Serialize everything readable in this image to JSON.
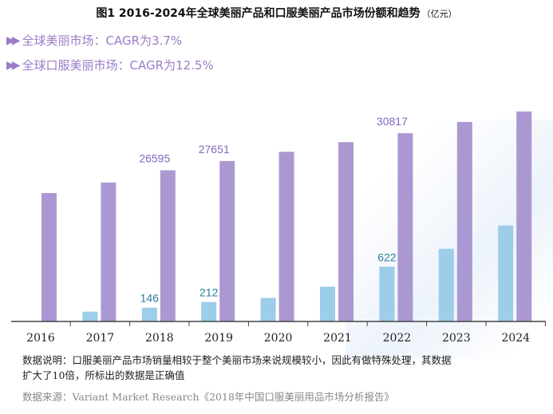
{
  "title": "图1 2016-2024年全球美丽产品和口服美丽产品市场份额和趋势",
  "title_unit": "（亿元）",
  "legend": [
    {
      "marker": "▶▶",
      "label": "全球美丽市场：CAGR为3.7%",
      "color": "#a99ad0"
    },
    {
      "marker": "▶▶",
      "label": "全球口服美丽市场：CAGR为12.5%",
      "color": "#a99ad0"
    }
  ],
  "colors": {
    "purple": "#ab98d2",
    "blue": "#9ccde9",
    "axis": "#444444",
    "label_purple": "#8468ba",
    "label_blue": "#2f7e98"
  },
  "chart_data": {
    "type": "bar",
    "categories": [
      "2016",
      "2017",
      "2018",
      "2019",
      "2020",
      "2021",
      "2022",
      "2023",
      "2024"
    ],
    "series": [
      {
        "name": "全球美丽市场",
        "values": [
          24000,
          25200,
          26595,
          27651,
          28700,
          29800,
          30817,
          32100,
          33300
        ]
      },
      {
        "name": "全球口服美丽市场",
        "values": [
          0,
          100,
          146,
          212,
          260,
          390,
          622,
          830,
          1100
        ]
      }
    ],
    "data_labels": [
      {
        "series": 0,
        "index": 2,
        "text": "26595"
      },
      {
        "series": 0,
        "index": 3,
        "text": "27651"
      },
      {
        "series": 0,
        "index": 6,
        "text": "30817"
      },
      {
        "series": 1,
        "index": 2,
        "text": "146"
      },
      {
        "series": 1,
        "index": 3,
        "text": "212"
      },
      {
        "series": 1,
        "index": 6,
        "text": "622"
      }
    ],
    "notes": "口服美丽市场数值扩大10倍显示"
  },
  "notes": {
    "desc_line1": "数据说明：口服美丽产品市场销量相较于整个美丽市场来说规模较小，因此有做特殊处理，其数据",
    "desc_line2": "扩大了10倍，所标出的数据是正确值",
    "source": "数据来源：Variant Market Research《2018年中国口服美丽用品市场分析报告》"
  }
}
